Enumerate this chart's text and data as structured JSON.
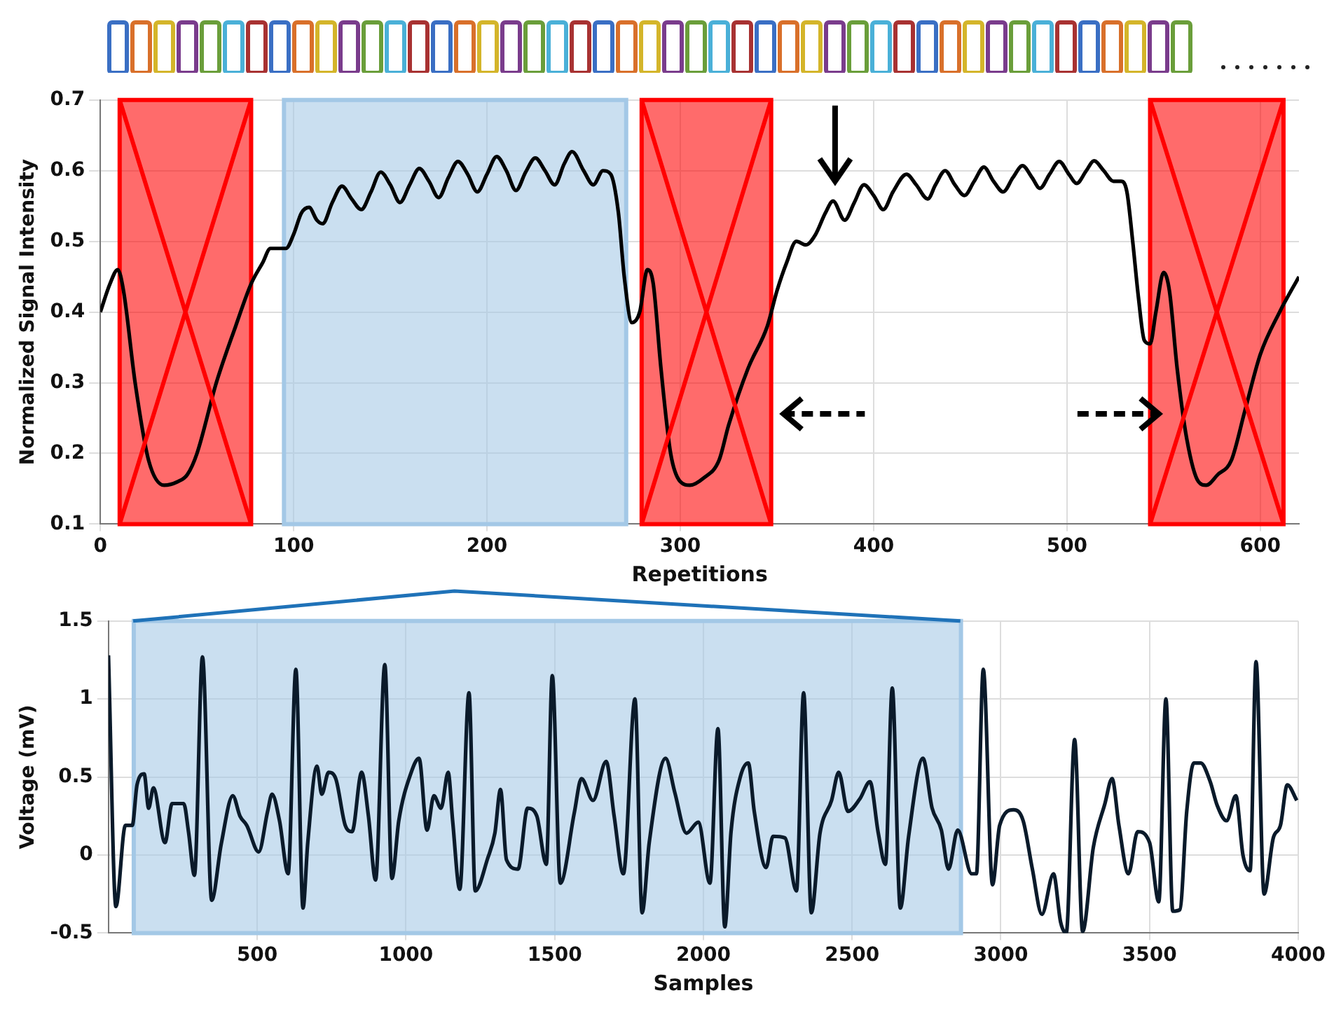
{
  "chart_data": [
    {
      "type": "line",
      "xlabel": "Repetitions",
      "ylabel": "Normalized Signal Intensity",
      "x": [
        0,
        5,
        9,
        12,
        18,
        25,
        33,
        40,
        45,
        50,
        60,
        70,
        78,
        84,
        88,
        93,
        96,
        100,
        104,
        108,
        112,
        115,
        120,
        125,
        130,
        135,
        140,
        145,
        150,
        155,
        160,
        165,
        170,
        175,
        180,
        185,
        190,
        195,
        200,
        205,
        210,
        215,
        220,
        225,
        230,
        235,
        240,
        244,
        250,
        255,
        260,
        264,
        268,
        271,
        275,
        279,
        283,
        286,
        290,
        295,
        300,
        305,
        312,
        320,
        325,
        335,
        345,
        350,
        355,
        360,
        365,
        370,
        375,
        379,
        385,
        390,
        395,
        400,
        405,
        410,
        417,
        422,
        428,
        432,
        437,
        442,
        447,
        452,
        457,
        462,
        467,
        472,
        477,
        482,
        486,
        491,
        496,
        501,
        505,
        510,
        514,
        519,
        524,
        528,
        531,
        534,
        537,
        540,
        543,
        546,
        550,
        553,
        557,
        562,
        568,
        572,
        578,
        585,
        592,
        600,
        610,
        620
      ],
      "series": [
        {
          "color": "#000000",
          "values": [
            0.4,
            0.44,
            0.46,
            0.43,
            0.3,
            0.19,
            0.155,
            0.16,
            0.17,
            0.2,
            0.3,
            0.38,
            0.44,
            0.47,
            0.49,
            0.49,
            0.49,
            0.51,
            0.54,
            0.548,
            0.53,
            0.525,
            0.555,
            0.578,
            0.56,
            0.545,
            0.57,
            0.598,
            0.58,
            0.555,
            0.58,
            0.603,
            0.585,
            0.562,
            0.59,
            0.613,
            0.595,
            0.57,
            0.595,
            0.62,
            0.6,
            0.572,
            0.598,
            0.618,
            0.6,
            0.58,
            0.61,
            0.627,
            0.6,
            0.58,
            0.6,
            0.595,
            0.54,
            0.45,
            0.385,
            0.4,
            0.46,
            0.44,
            0.32,
            0.2,
            0.16,
            0.155,
            0.165,
            0.19,
            0.24,
            0.32,
            0.38,
            0.43,
            0.47,
            0.5,
            0.495,
            0.51,
            0.54,
            0.557,
            0.53,
            0.555,
            0.58,
            0.565,
            0.545,
            0.57,
            0.595,
            0.58,
            0.56,
            0.58,
            0.6,
            0.58,
            0.565,
            0.585,
            0.605,
            0.585,
            0.57,
            0.59,
            0.607,
            0.59,
            0.575,
            0.595,
            0.613,
            0.595,
            0.582,
            0.6,
            0.614,
            0.6,
            0.585,
            0.585,
            0.57,
            0.5,
            0.42,
            0.36,
            0.355,
            0.4,
            0.456,
            0.43,
            0.32,
            0.22,
            0.16,
            0.155,
            0.17,
            0.19,
            0.26,
            0.34,
            0.4,
            0.45
          ]
        }
      ],
      "xlim": [
        0,
        620
      ],
      "ylim": [
        0.1,
        0.7
      ],
      "xticks": [
        0,
        100,
        200,
        300,
        400,
        500,
        600
      ],
      "yticks": [
        0.1,
        0.2,
        0.3,
        0.4,
        0.5,
        0.6,
        0.7
      ],
      "grid": true,
      "legend": false,
      "marker": "none",
      "bands": [
        {
          "axis": "x",
          "from": 10,
          "to": 78,
          "color": "#ff0000"
        },
        {
          "axis": "x",
          "from": 280,
          "to": 347,
          "color": "#ff0000"
        },
        {
          "axis": "x",
          "from": 543,
          "to": 612,
          "color": "#ff0000"
        },
        {
          "axis": "x",
          "from": 95,
          "to": 272,
          "color": "#a3c8e6"
        }
      ]
    },
    {
      "type": "line",
      "xlabel": "Samples",
      "ylabel": "Voltage (mV)",
      "x": [
        0,
        25,
        57,
        80,
        96,
        120,
        135,
        151,
        190,
        214,
        253,
        269,
        289,
        316,
        347,
        379,
        418,
        442,
        465,
        505,
        535,
        550,
        575,
        604,
        630,
        654,
        670,
        701,
        717,
        740,
        764,
        796,
        819,
        851,
        874,
        898,
        929,
        953,
        976,
        1016,
        1044,
        1071,
        1094,
        1118,
        1142,
        1157,
        1181,
        1212,
        1233,
        1275,
        1299,
        1318,
        1338,
        1377,
        1409,
        1440,
        1472,
        1492,
        1519,
        1566,
        1590,
        1629,
        1673,
        1700,
        1731,
        1770,
        1794,
        1818,
        1873,
        1904,
        1943,
        1983,
        2022,
        2049,
        2072,
        2093,
        2124,
        2151,
        2171,
        2211,
        2234,
        2274,
        2313,
        2337,
        2363,
        2392,
        2431,
        2455,
        2486,
        2526,
        2560,
        2588,
        2612,
        2635,
        2662,
        2690,
        2738,
        2769,
        2800,
        2824,
        2855,
        2902,
        2918,
        2941,
        2972,
        2996,
        3043,
        3075,
        3106,
        3138,
        3177,
        3201,
        3220,
        3248,
        3275,
        3311,
        3350,
        3374,
        3397,
        3429,
        3460,
        3500,
        3531,
        3555,
        3578,
        3602,
        3625,
        3649,
        3672,
        3704,
        3727,
        3759,
        3790,
        3814,
        3838,
        3858,
        3885,
        3916,
        3940,
        3963,
        3995
      ],
      "series": [
        {
          "color": "#0a1a2a",
          "values": [
            1.28,
            -0.33,
            0.19,
            0.19,
            0.45,
            0.52,
            0.3,
            0.43,
            0.08,
            0.33,
            0.33,
            0.15,
            -0.13,
            1.27,
            -0.29,
            0.07,
            0.38,
            0.25,
            0.19,
            0.02,
            0.28,
            0.39,
            0.22,
            -0.12,
            1.19,
            -0.34,
            0.08,
            0.57,
            0.39,
            0.53,
            0.49,
            0.19,
            0.15,
            0.53,
            0.25,
            -0.16,
            1.22,
            -0.15,
            0.22,
            0.52,
            0.62,
            0.16,
            0.38,
            0.3,
            0.53,
            0.22,
            -0.22,
            1.04,
            -0.23,
            -0.02,
            0.14,
            0.42,
            -0.03,
            -0.09,
            0.3,
            0.25,
            -0.06,
            1.15,
            -0.18,
            0.27,
            0.49,
            0.35,
            0.6,
            0.25,
            -0.12,
            1.0,
            -0.37,
            0.08,
            0.62,
            0.4,
            0.14,
            0.21,
            -0.18,
            0.81,
            -0.46,
            0.15,
            0.5,
            0.59,
            0.28,
            -0.08,
            0.12,
            0.11,
            -0.23,
            1.04,
            -0.37,
            0.14,
            0.35,
            0.53,
            0.28,
            0.36,
            0.47,
            0.14,
            -0.06,
            1.07,
            -0.34,
            0.12,
            0.62,
            0.3,
            0.16,
            -0.09,
            0.16,
            -0.12,
            -0.12,
            1.19,
            -0.19,
            0.19,
            0.29,
            0.22,
            -0.09,
            -0.38,
            -0.12,
            -0.43,
            -0.5,
            0.74,
            -0.49,
            0.05,
            0.33,
            0.49,
            0.19,
            -0.12,
            0.15,
            0.08,
            -0.3,
            1.0,
            -0.36,
            -0.35,
            0.28,
            0.59,
            0.59,
            0.47,
            0.32,
            0.22,
            0.38,
            0.0,
            -0.1,
            1.24,
            -0.25,
            0.11,
            0.19,
            0.45,
            0.35
          ]
        }
      ],
      "xlim": [
        0,
        4000
      ],
      "ylim": [
        -0.5,
        1.5
      ],
      "xticks": [
        500,
        1000,
        1500,
        2000,
        2500,
        3000,
        3500,
        4000
      ],
      "yticks": [
        -0.5,
        0,
        0.5,
        1,
        1.5
      ],
      "grid": true,
      "legend": false,
      "marker": "none",
      "bands": [
        {
          "axis": "x",
          "from": 85,
          "to": 2866,
          "color": "#a3c8e6"
        }
      ]
    }
  ]
}
